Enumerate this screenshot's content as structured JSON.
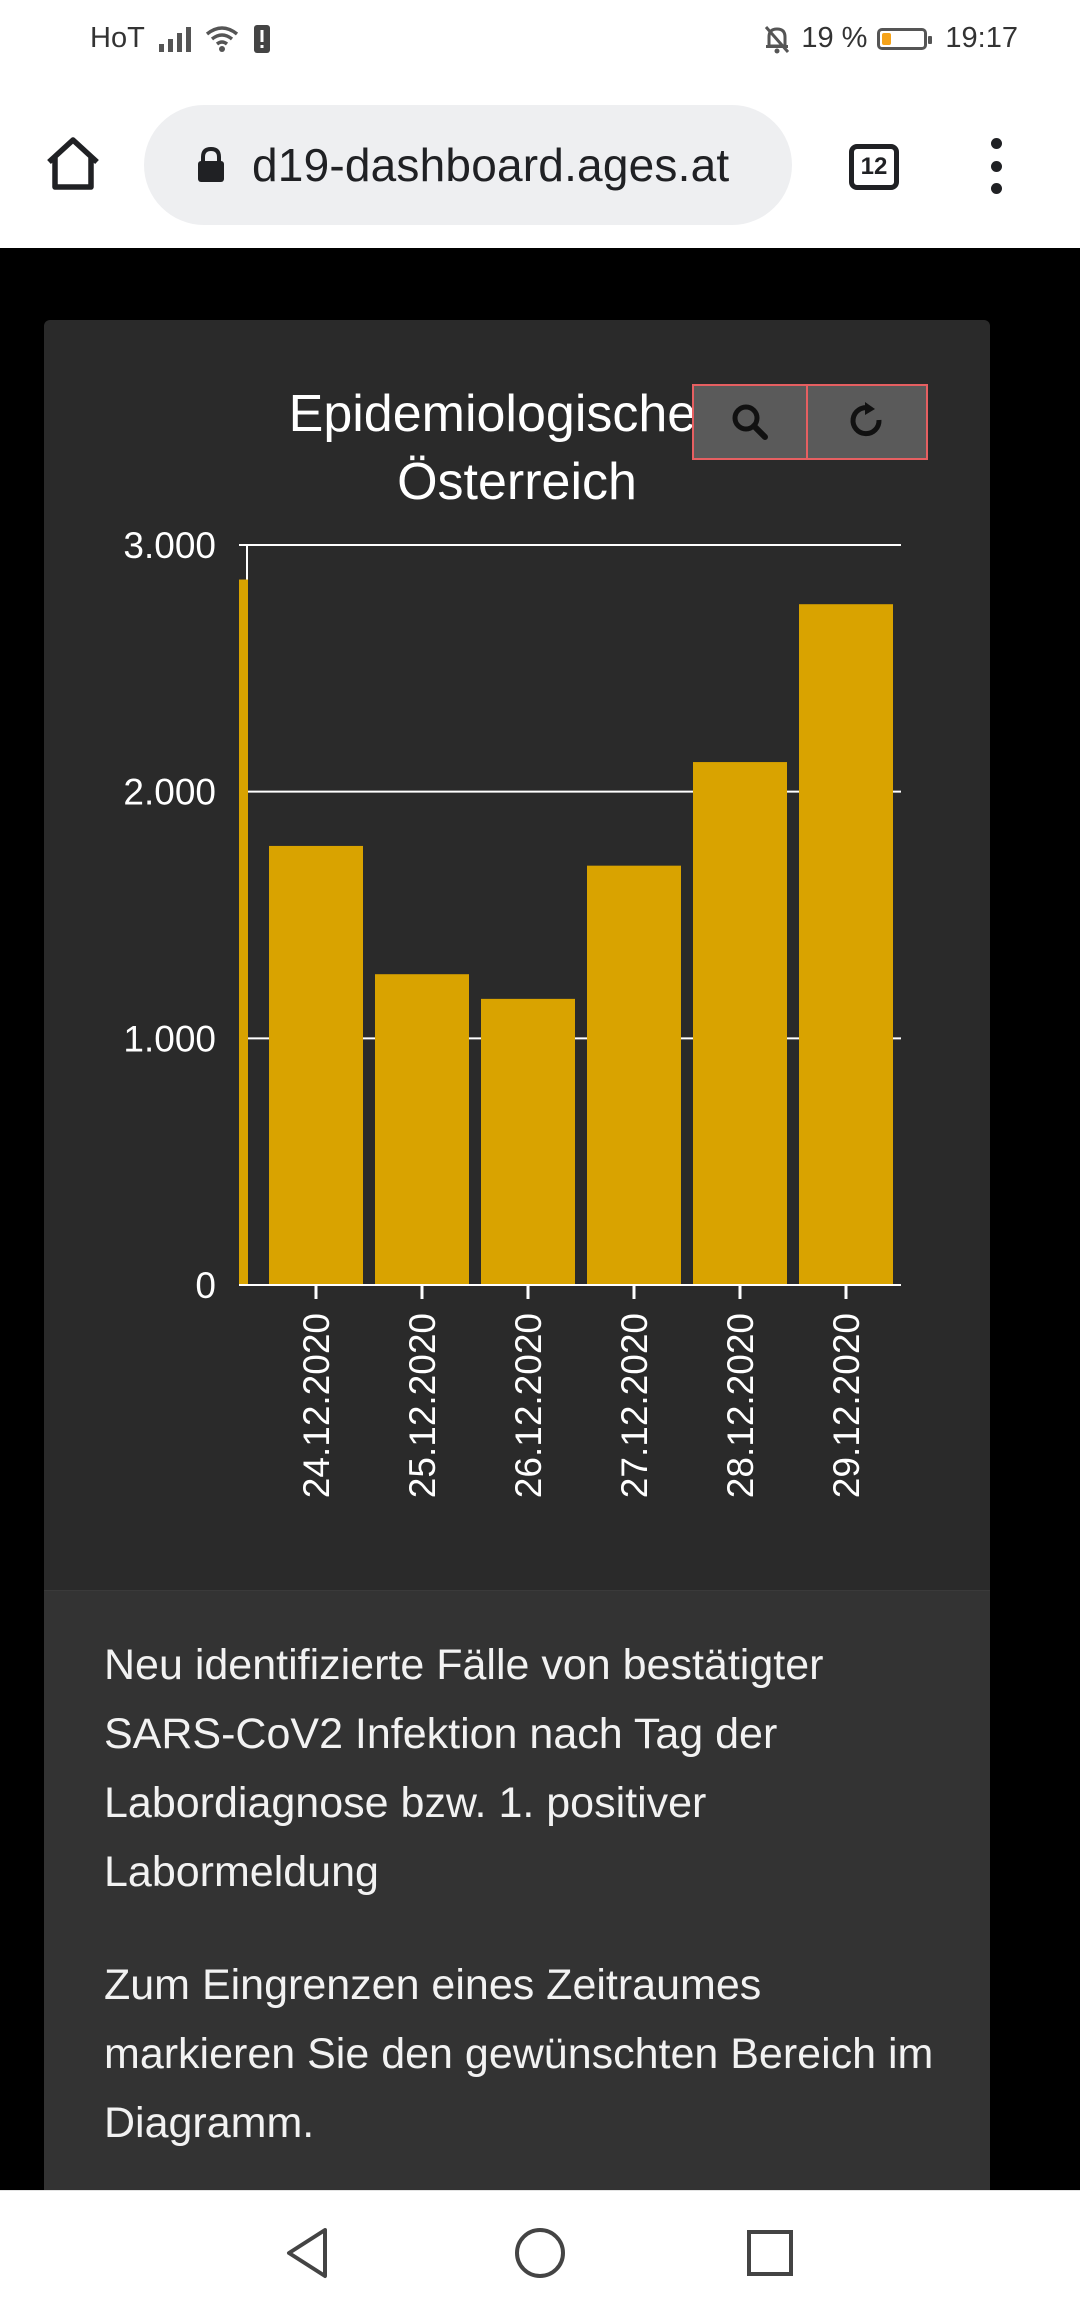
{
  "status_bar": {
    "carrier": "HoT",
    "battery_text": "19 %",
    "battery_level": 0.19,
    "time": "19:17",
    "icons": [
      "signal-icon",
      "wifi-icon",
      "alert-icon",
      "silent-icon",
      "battery-icon"
    ]
  },
  "browser": {
    "url": "d19-dashboard.ages.at",
    "tab_count": "12",
    "icons": [
      "home-icon",
      "lock-icon",
      "tabs-icon",
      "more-vert-icon"
    ]
  },
  "chart_toolbar": {
    "icons": [
      "search-icon",
      "reset-icon"
    ]
  },
  "chart_data": {
    "type": "bar",
    "title_line1": "Epidemiologische K",
    "title_line2": "Österreich",
    "categories": [
      "24.12.2020",
      "25.12.2020",
      "26.12.2020",
      "27.12.2020",
      "28.12.2020",
      "29.12.2020"
    ],
    "values": [
      1780,
      1260,
      1160,
      1700,
      2120,
      2760
    ],
    "partial_bar_value": 2860,
    "ylim": [
      0,
      3000
    ],
    "yticks": [
      0,
      1000,
      2000,
      3000
    ],
    "ytick_labels": [
      "0",
      "1.000",
      "2.000",
      "3.000"
    ],
    "grid": true,
    "bar_color": "#d9a300"
  },
  "description": {
    "p1": "Neu identifizierte Fälle von bestätigter SARS-CoV2 Infektion nach Tag der Labordiagnose bzw. 1. positiver Labormeldung",
    "p2": "Zum Eingrenzen eines Zeitraumes markieren Sie den gewünschten Bereich im Diagramm."
  },
  "nav_bar": {
    "icons": [
      "back-icon",
      "home-circle-icon",
      "recents-icon"
    ]
  }
}
